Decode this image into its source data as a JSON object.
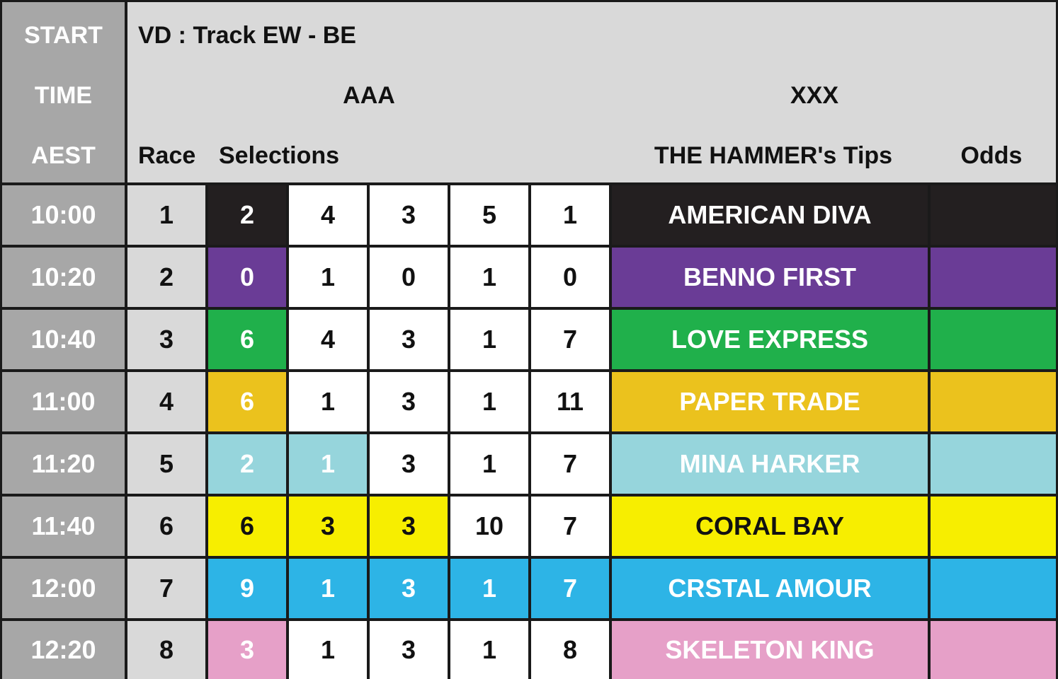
{
  "header": {
    "start_col": [
      "START",
      "TIME",
      "AEST"
    ],
    "title": "VD : Track EW - BE",
    "group_left": "AAA",
    "group_right": "XXX",
    "race_label": "Race",
    "selections_label": "Selections",
    "tips_label": "THE HAMMER's Tips",
    "odds_label": "Odds"
  },
  "colors": {
    "time_bg": "#a7a7a7",
    "race_bg": "#d9d9d9",
    "black": "#231f20",
    "purple": "#6a3c96",
    "green": "#20b04b",
    "gold": "#ebc21d",
    "light_blue": "#96d5dc",
    "yellow": "#f7ee00",
    "blue": "#2db4e6",
    "pink": "#e6a0c8",
    "white": "#ffffff"
  },
  "rows": [
    {
      "time": "10:00",
      "race": "1",
      "selections": [
        "2",
        "4",
        "3",
        "5",
        "1"
      ],
      "tip": "AMERICAN DIVA",
      "odds": "",
      "color": "#231f20",
      "text_color": "#ffffff",
      "highlight_count": 1
    },
    {
      "time": "10:20",
      "race": "2",
      "selections": [
        "0",
        "1",
        "0",
        "1",
        "0"
      ],
      "tip": "BENNO FIRST",
      "odds": "",
      "color": "#6a3c96",
      "text_color": "#ffffff",
      "highlight_count": 1
    },
    {
      "time": "10:40",
      "race": "3",
      "selections": [
        "6",
        "4",
        "3",
        "1",
        "7"
      ],
      "tip": "LOVE EXPRESS",
      "odds": "",
      "color": "#20b04b",
      "text_color": "#ffffff",
      "highlight_count": 1
    },
    {
      "time": "11:00",
      "race": "4",
      "selections": [
        "6",
        "1",
        "3",
        "1",
        "11"
      ],
      "tip": "PAPER TRADE",
      "odds": "",
      "color": "#ebc21d",
      "text_color": "#ffffff",
      "highlight_count": 1
    },
    {
      "time": "11:20",
      "race": "5",
      "selections": [
        "2",
        "1",
        "3",
        "1",
        "7"
      ],
      "tip": "MINA HARKER",
      "odds": "",
      "color": "#96d5dc",
      "text_color": "#ffffff",
      "highlight_count": 2
    },
    {
      "time": "11:40",
      "race": "6",
      "selections": [
        "6",
        "3",
        "3",
        "10",
        "7"
      ],
      "tip": "CORAL BAY",
      "odds": "",
      "color": "#f7ee00",
      "text_color": "#111111",
      "highlight_count": 3
    },
    {
      "time": "12:00",
      "race": "7",
      "selections": [
        "9",
        "1",
        "3",
        "1",
        "7"
      ],
      "tip": "CRSTAL AMOUR",
      "odds": "",
      "color": "#2db4e6",
      "text_color": "#ffffff",
      "highlight_count": 5
    },
    {
      "time": "12:20",
      "race": "8",
      "selections": [
        "3",
        "1",
        "3",
        "1",
        "8"
      ],
      "tip": "SKELETON KING",
      "odds": "",
      "color": "#e6a0c8",
      "text_color": "#ffffff",
      "highlight_count": 1
    }
  ]
}
